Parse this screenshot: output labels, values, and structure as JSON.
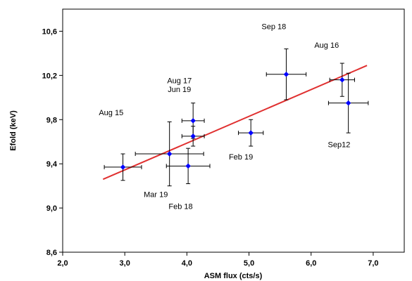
{
  "chart_data": {
    "type": "scatter",
    "title": "",
    "xlabel": "ASM flux  (cts/s)",
    "ylabel": "Efold (keV)",
    "xlim": [
      2.0,
      7.5
    ],
    "ylim": [
      8.6,
      10.8
    ],
    "x_ticks": [
      2.0,
      3.0,
      4.0,
      5.0,
      6.0,
      7.0
    ],
    "x_tick_labels": [
      "2,0",
      "3,0",
      "4,0",
      "5,0",
      "6,0",
      "7,0"
    ],
    "y_ticks": [
      8.6,
      9.0,
      9.4,
      9.8,
      10.2,
      10.6
    ],
    "y_tick_labels": [
      "8,6",
      "9,0",
      "9,4",
      "9,8",
      "10,2",
      "10,6"
    ],
    "grid": false,
    "marker_color": "#0000ff",
    "fit_color": "#e03030",
    "points": [
      {
        "x": 2.97,
        "y": 9.37,
        "xerr": 0.3,
        "yerr": 0.12
      },
      {
        "x": 3.72,
        "y": 9.49,
        "xerr": 0.55,
        "yerr": 0.29
      },
      {
        "x": 4.02,
        "y": 9.38,
        "xerr": 0.35,
        "yerr": 0.16
      },
      {
        "x": 4.1,
        "y": 9.79,
        "xerr": 0.18,
        "yerr": 0.16
      },
      {
        "x": 4.1,
        "y": 9.65,
        "xerr": 0.18,
        "yerr": 0.09
      },
      {
        "x": 5.03,
        "y": 9.68,
        "xerr": 0.2,
        "yerr": 0.12
      },
      {
        "x": 5.6,
        "y": 10.21,
        "xerr": 0.32,
        "yerr": 0.23
      },
      {
        "x": 6.5,
        "y": 10.16,
        "xerr": 0.2,
        "yerr": 0.15
      },
      {
        "x": 6.6,
        "y": 9.95,
        "xerr": 0.32,
        "yerr": 0.27
      }
    ],
    "fit_line": {
      "x": [
        2.65,
        6.9
      ],
      "y": [
        9.26,
        10.29
      ]
    },
    "annotations": [
      {
        "text": "Aug 15",
        "x": 2.78,
        "y": 9.84
      },
      {
        "text": "Aug 17",
        "x": 3.88,
        "y": 10.13
      },
      {
        "text": "Jun 19",
        "x": 3.88,
        "y": 10.05
      },
      {
        "text": "Sep 18",
        "x": 5.4,
        "y": 10.62
      },
      {
        "text": "Aug 16",
        "x": 6.25,
        "y": 10.45
      },
      {
        "text": "Sep12",
        "x": 6.45,
        "y": 9.55
      },
      {
        "text": "Feb 19",
        "x": 4.87,
        "y": 9.44
      },
      {
        "text": "Mar 19",
        "x": 3.5,
        "y": 9.1
      },
      {
        "text": "Feb 18",
        "x": 3.9,
        "y": 8.99
      }
    ]
  }
}
